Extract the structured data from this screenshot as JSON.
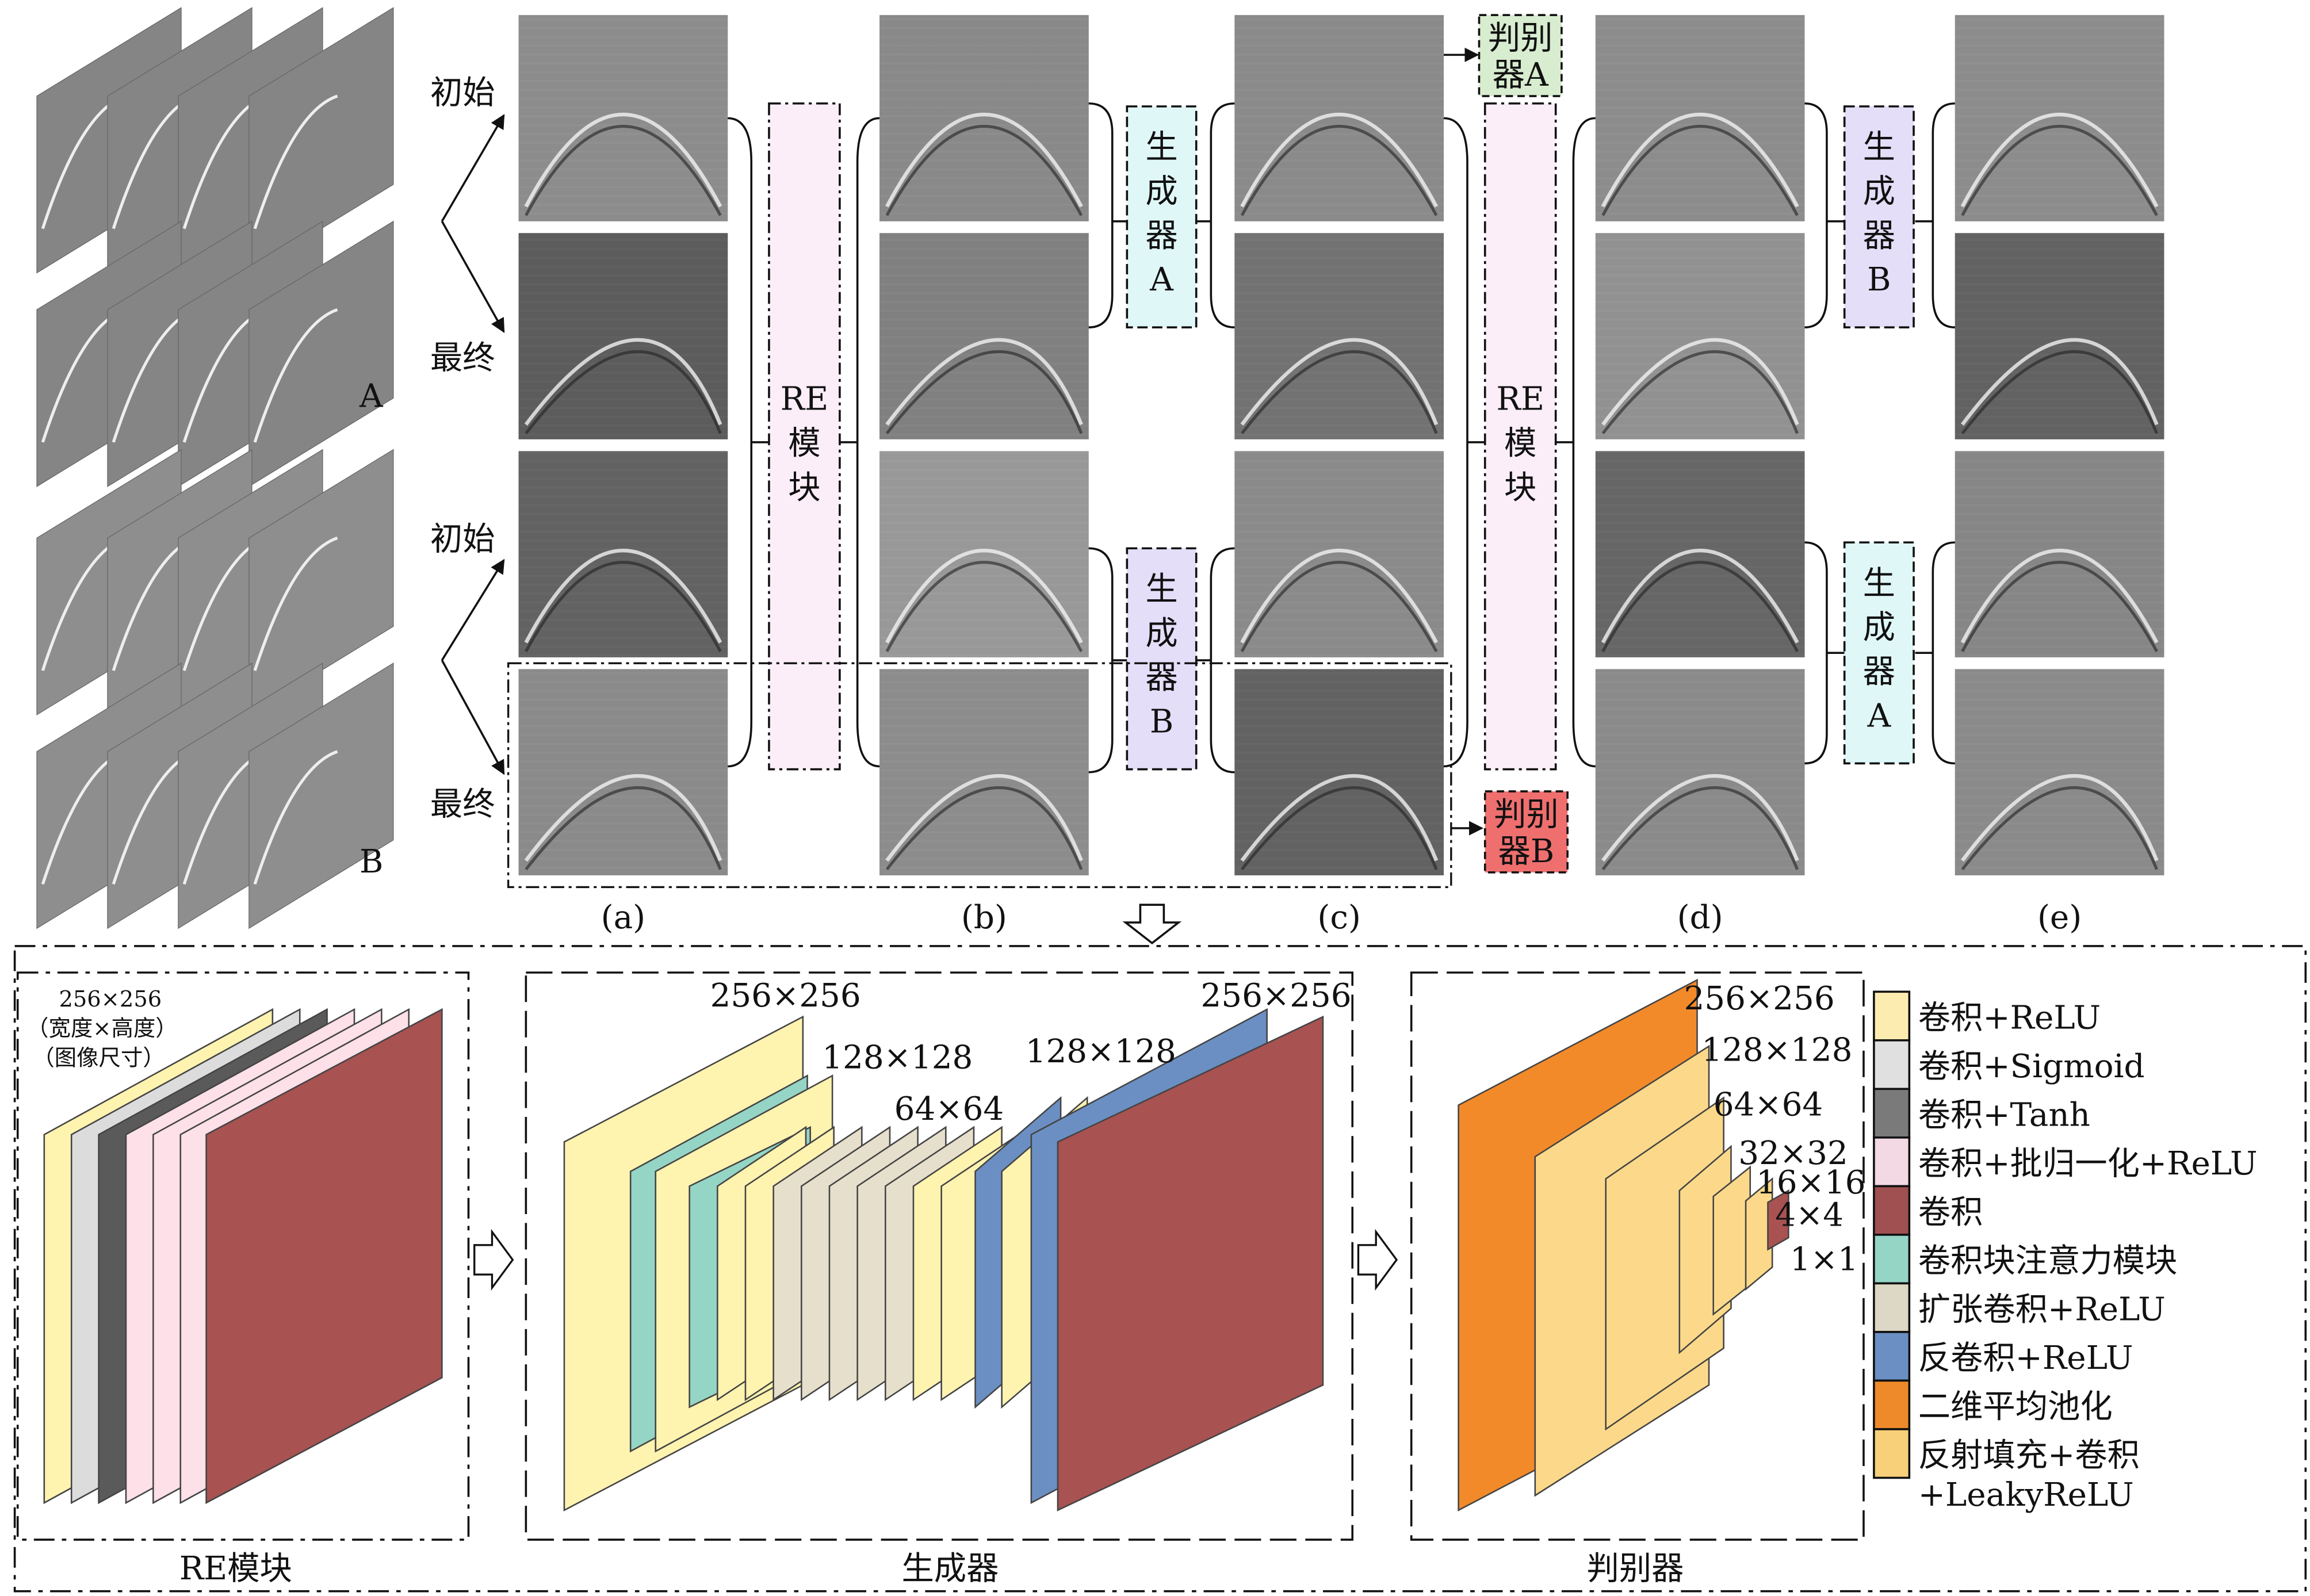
{
  "stacks": {
    "top_label": "A",
    "bottom_label": "B"
  },
  "row_labels": [
    "初始",
    "最终",
    "初始",
    "最终"
  ],
  "column_labels": [
    "(a)",
    "(b)",
    "(c)",
    "(d)",
    "(e)"
  ],
  "re_module_label": [
    "RE",
    "模",
    "块"
  ],
  "generator_a_label": [
    "生",
    "成",
    "器",
    "A"
  ],
  "generator_b_label": [
    "生",
    "成",
    "器",
    "B"
  ],
  "discriminator_a_label": [
    "判别",
    "器A"
  ],
  "discriminator_b_label": [
    "判别",
    "器B"
  ],
  "colors": {
    "re_box": "#fbeef8",
    "generator_a": "#e0f7f7",
    "generator_b": "#e4def9",
    "discriminator_a": "#d8ecd0",
    "discriminator_b": "#ef6f6f"
  },
  "bottom": {
    "re_title": "RE模块",
    "gen_title": "生成器",
    "disc_title": "判别器",
    "re_size": "256×256",
    "re_size_note1": "（宽度×高度）",
    "re_size_note2": "（图像尺寸）",
    "gen_sizes": [
      "256×256",
      "128×128",
      "64×64",
      "128×128",
      "256×256"
    ],
    "disc_sizes": [
      "256×256",
      "128×128",
      "64×64",
      "32×32",
      "16×16",
      "4×4",
      "1×1"
    ]
  },
  "legend": [
    {
      "label": "卷积+ReLU",
      "color": "#fdecb0"
    },
    {
      "label": "卷积+Sigmoid",
      "color": "#e0e0e0"
    },
    {
      "label": "卷积+Tanh",
      "color": "#7a7a7a"
    },
    {
      "label": "卷积+批归一化+ReLU",
      "color": "#f3d9e4"
    },
    {
      "label": "卷积",
      "color": "#a05050"
    },
    {
      "label": "卷积块注意力模块",
      "color": "#95d5c5"
    },
    {
      "label": "扩张卷积+ReLU",
      "color": "#ddd8c5"
    },
    {
      "label": "反卷积+ReLU",
      "color": "#6b8fc3"
    },
    {
      "label": "二维平均池化",
      "color": "#ee8a2a"
    },
    {
      "label": "反射填充+卷积",
      "label2": "+LeakyReLU",
      "color": "#f8d07a"
    }
  ]
}
